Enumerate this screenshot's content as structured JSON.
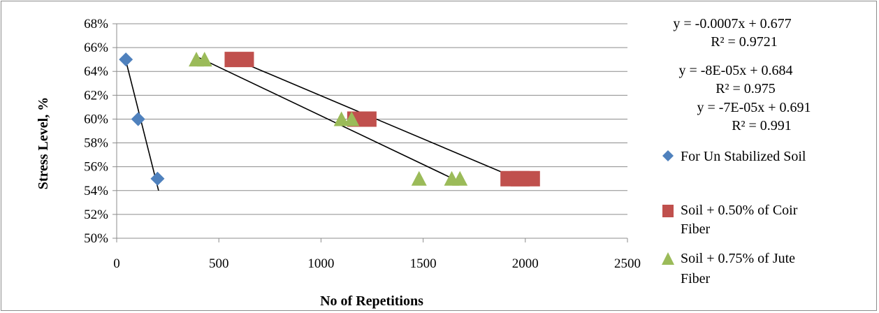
{
  "chart_data": {
    "type": "scatter",
    "title": "",
    "xlabel": "No of Repetitions",
    "ylabel": "Stress Level, %",
    "xlim": [
      0,
      2500
    ],
    "ylim": [
      0.5,
      0.68
    ],
    "xticks": [
      0,
      500,
      1000,
      1500,
      2000,
      2500
    ],
    "xtick_labels": [
      "0",
      "500",
      "1000",
      "1500",
      "2000",
      "2500"
    ],
    "yticks": [
      0.5,
      0.52,
      0.54,
      0.56,
      0.58,
      0.6,
      0.62,
      0.64,
      0.66,
      0.68
    ],
    "ytick_labels": [
      "50%",
      "52%",
      "54%",
      "56%",
      "58%",
      "60%",
      "62%",
      "64%",
      "66%",
      "68%"
    ],
    "grid": "horizontal",
    "legend_position": "right",
    "series": [
      {
        "name": "For Un Stabilized Soil",
        "marker": "diamond",
        "color": "#4f81bd",
        "x": [
          45,
          105,
          200
        ],
        "y": [
          0.65,
          0.6,
          0.55
        ],
        "trendline": {
          "x": [
            45,
            205
          ],
          "y": [
            0.649,
            0.54
          ]
        }
      },
      {
        "name": "Soil + 0.50% of Coir Fiber",
        "marker": "square",
        "color": "#c0504d",
        "x": [
          600,
          1200,
          1950,
          2000
        ],
        "y": [
          0.65,
          0.6,
          0.55,
          0.55
        ],
        "trendline": {
          "x": [
            580,
            2030
          ],
          "y": [
            0.65,
            0.545
          ]
        }
      },
      {
        "name": "Soil + 0.75% of Jute Fiber",
        "marker": "triangle",
        "color": "#9bbb59",
        "x": [
          390,
          430,
          1100,
          1150,
          1480,
          1640,
          1680
        ],
        "y": [
          0.65,
          0.65,
          0.6,
          0.6,
          0.55,
          0.55,
          0.55
        ],
        "trendline": {
          "x": [
            385,
            1670
          ],
          "y": [
            0.653,
            0.548
          ]
        }
      }
    ],
    "annotations": [
      {
        "equation": "y = -0.0007x + 0.677",
        "r2": "R² = 0.9721"
      },
      {
        "equation": "y = -8E-05x + 0.684",
        "r2": "R² = 0.975"
      },
      {
        "equation": "y = -7E-05x + 0.691",
        "r2": "R² = 0.991"
      }
    ]
  }
}
